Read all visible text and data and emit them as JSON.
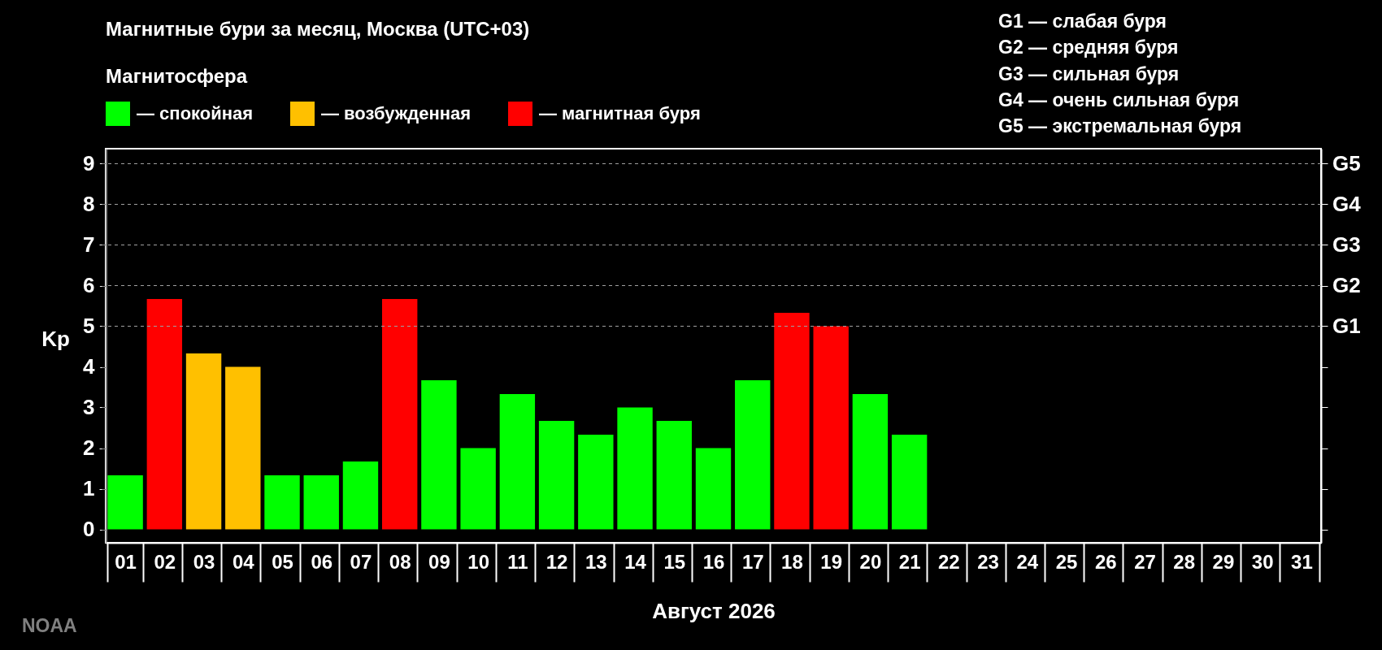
{
  "chart_data": {
    "type": "bar",
    "title": "Магнитные бури за месяц, Москва (UTC+03)",
    "xlabel": "Август 2026",
    "ylabel": "Kp",
    "legend_title": "Магнитосфера",
    "legend": "top left",
    "categories": [
      "01",
      "02",
      "03",
      "04",
      "05",
      "06",
      "07",
      "08",
      "09",
      "10",
      "11",
      "12",
      "13",
      "14",
      "15",
      "16",
      "17",
      "18",
      "19",
      "20",
      "21",
      "22",
      "23",
      "24",
      "25",
      "26",
      "27",
      "28",
      "29",
      "30",
      "31"
    ],
    "series": [
      {
        "name": "— спокойная",
        "color": "#00ff00",
        "values": [
          1.33,
          null,
          null,
          null,
          1.33,
          1.33,
          1.67,
          null,
          3.67,
          2,
          3.33,
          2.67,
          2.33,
          3,
          2.67,
          2,
          3.67,
          null,
          null,
          3.33,
          2.33,
          null,
          null,
          null,
          null,
          null,
          null,
          null,
          null,
          null,
          null
        ]
      },
      {
        "name": "— возбужденная",
        "color": "#ffc000",
        "values": [
          null,
          null,
          4.33,
          4,
          null,
          null,
          null,
          null,
          null,
          null,
          null,
          null,
          null,
          null,
          null,
          null,
          null,
          null,
          null,
          null,
          null,
          null,
          null,
          null,
          null,
          null,
          null,
          null,
          null,
          null,
          null
        ]
      },
      {
        "name": "— магнитная буря",
        "color": "#ff0000",
        "values": [
          null,
          5.67,
          null,
          null,
          null,
          null,
          null,
          5.67,
          null,
          null,
          null,
          null,
          null,
          null,
          null,
          null,
          null,
          5.33,
          5,
          null,
          null,
          null,
          null,
          null,
          null,
          null,
          null,
          null,
          null,
          null,
          null
        ]
      }
    ],
    "ylim": [
      -0.33,
      9.37
    ],
    "yticks": [
      0,
      1,
      2,
      3,
      4,
      5,
      6,
      7,
      8,
      9
    ],
    "ref_lines": [
      {
        "axis": "y",
        "value": 5,
        "label": "G1",
        "color": "#a0a0a0",
        "line_style": "dashed"
      },
      {
        "axis": "y",
        "value": 6,
        "label": "G2",
        "color": "#a0a0a0",
        "line_style": "dashed"
      },
      {
        "axis": "y",
        "value": 7,
        "label": "G3",
        "color": "#a0a0a0",
        "line_style": "dashed"
      },
      {
        "axis": "y",
        "value": 8,
        "label": "G4",
        "color": "#a0a0a0",
        "line_style": "dashed"
      },
      {
        "axis": "y",
        "value": 9,
        "label": "G5",
        "color": "#a0a0a0",
        "line_style": "dashed"
      }
    ],
    "annotations": [
      "G1 — слабая буря",
      "G2 — средняя буря",
      "G3 — сильная буря",
      "G4 — очень сильная буря",
      "G5 — экстремальная буря",
      "NOAA"
    ]
  }
}
